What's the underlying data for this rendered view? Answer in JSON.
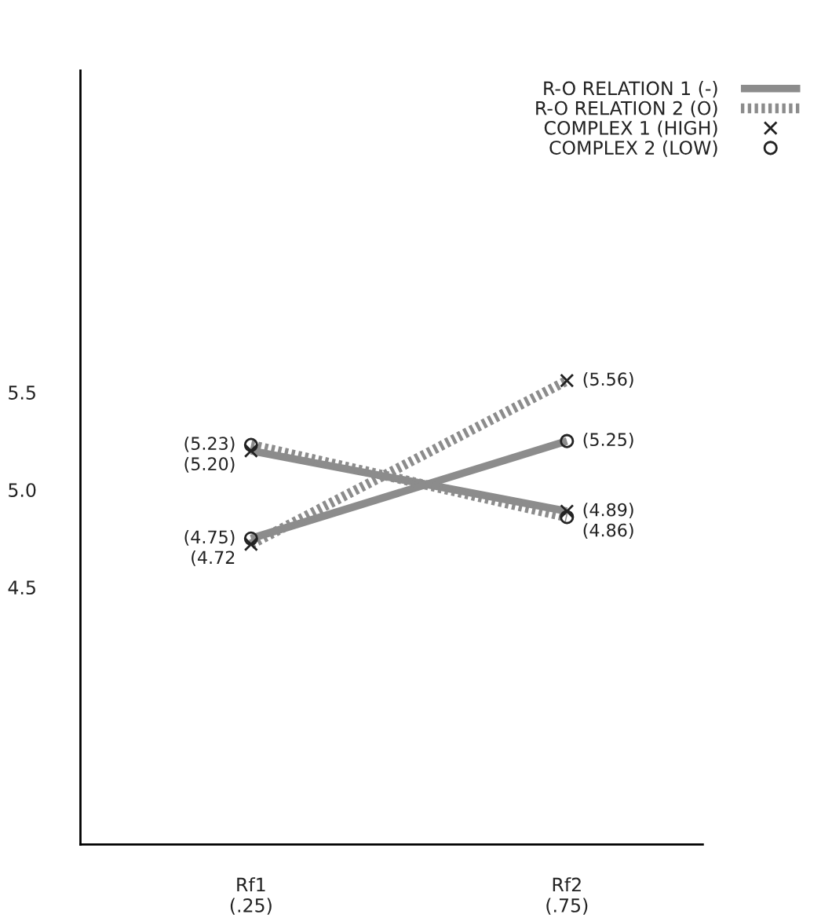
{
  "chart_data": {
    "type": "line",
    "categories": [
      "Rf1\n(.25)",
      "Rf2\n(.75)"
    ],
    "ylim": [
      3.18,
      7.15
    ],
    "yticks": [
      4.5,
      {
        "value": 5.0,
        "label": "5.0"
      },
      5.5
    ],
    "grid": false,
    "annotations": [
      "R-O RELATION 1 (-)",
      "R-O RELATION 2 (O)",
      "COMPLEX 1 (HIGH)",
      "COMPLEX 2 (LOW)"
    ],
    "series": [
      {
        "color": "#8c8c8c",
        "line_style": "solid",
        "marker": "cross",
        "values": [
          5.2,
          4.89
        ],
        "value_labels": [
          "(5.20)",
          "(4.89)"
        ]
      },
      {
        "color": "#8c8c8c",
        "line_style": "solid",
        "marker": "circle",
        "values": [
          4.75,
          5.25
        ],
        "value_labels": [
          "(4.75)",
          "(5.25)"
        ]
      },
      {
        "color": "#8c8c8c",
        "line_style": "dotted",
        "marker": "cross",
        "values": [
          4.72,
          5.56
        ],
        "value_labels": [
          "(4.72",
          "(5.56)"
        ]
      },
      {
        "color": "#8c8c8c",
        "line_style": "dotted",
        "marker": "circle",
        "values": [
          5.23,
          4.86
        ],
        "value_labels": [
          "(5.23)",
          "(4.86)"
        ]
      }
    ]
  }
}
